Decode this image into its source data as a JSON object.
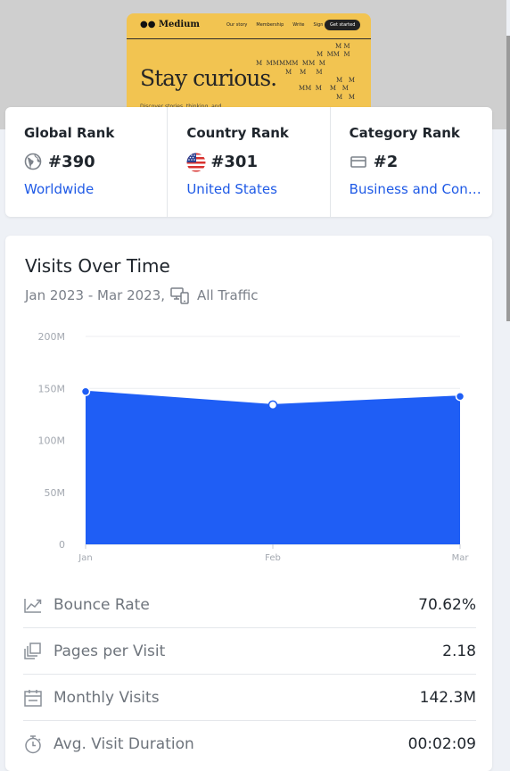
{
  "preview": {
    "logo": "Medium",
    "nav_links": [
      "Our story",
      "Membership",
      "Write",
      "Sign in"
    ],
    "cta": "Get started",
    "headline": "Stay curious.",
    "subline": "Discover stories, thinking, and"
  },
  "ranks": [
    {
      "title": "Global Rank",
      "value": "#390",
      "link": "Worldwide",
      "icon": "globe-icon"
    },
    {
      "title": "Country Rank",
      "value": "#301",
      "link": "United States",
      "icon": "us-flag-icon"
    },
    {
      "title": "Category Rank",
      "value": "#2",
      "link": "Business and Consumer Services",
      "icon": "category-icon"
    }
  ],
  "visits": {
    "title": "Visits Over Time",
    "period": "Jan 2023 - Mar 2023,",
    "traffic": "All Traffic"
  },
  "chart_data": {
    "type": "area",
    "categories": [
      "Jan",
      "Feb",
      "Mar"
    ],
    "values": [
      147,
      134,
      142.3
    ],
    "y_ticks": [
      "0",
      "50M",
      "100M",
      "150M",
      "200M"
    ],
    "ylim": [
      0,
      200
    ],
    "grid": true,
    "color": "#1f5ef5"
  },
  "metrics": [
    {
      "label": "Bounce Rate",
      "value": "70.62%",
      "icon": "bounce-rate-icon"
    },
    {
      "label": "Pages per Visit",
      "value": "2.18",
      "icon": "pages-icon"
    },
    {
      "label": "Monthly Visits",
      "value": "142.3M",
      "icon": "calendar-icon"
    },
    {
      "label": "Avg. Visit Duration",
      "value": "00:02:09",
      "icon": "stopwatch-icon"
    }
  ]
}
